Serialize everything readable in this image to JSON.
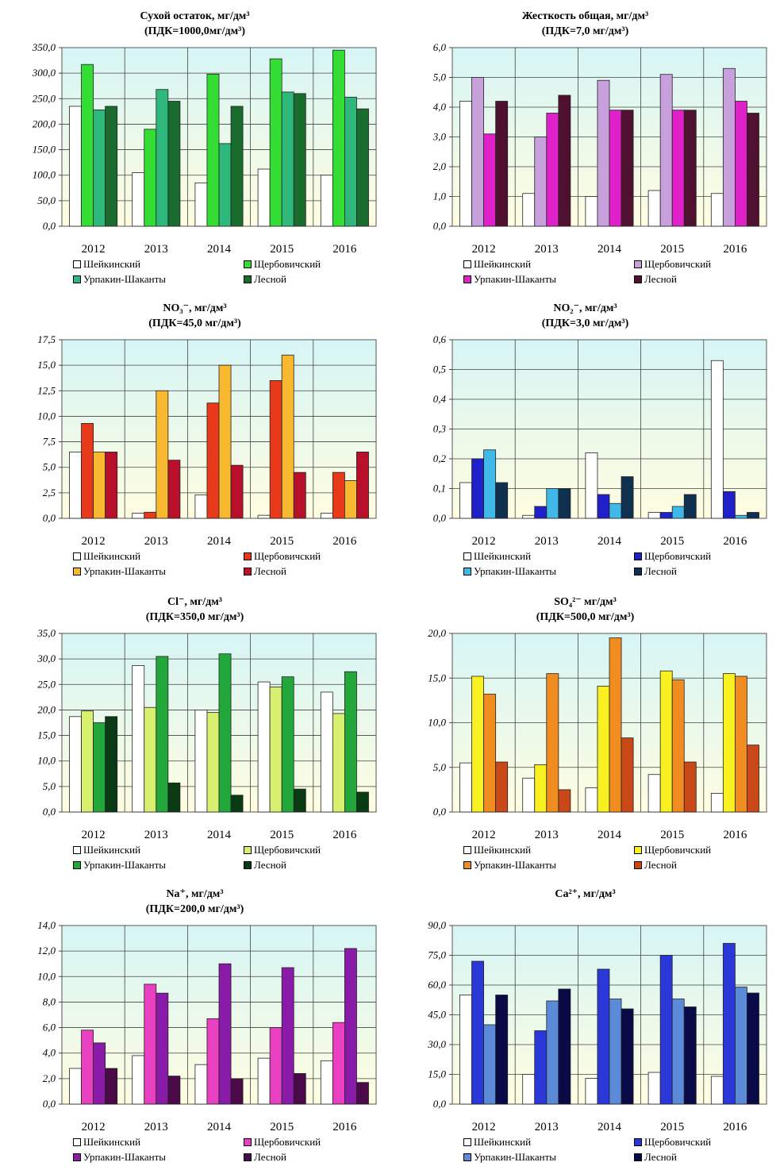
{
  "chart_data": [
    {
      "type": "bar",
      "title": "Сухой остаток, мг/дм³",
      "subtitle": "(ПДК=1000,0мг/дм³)",
      "categories": [
        "2012",
        "2013",
        "2014",
        "2015",
        "2016"
      ],
      "ylim": [
        0,
        350
      ],
      "yticks": [
        "0,0",
        "50,0",
        "100,0",
        "150,0",
        "200,0",
        "250,0",
        "300,0",
        "350,0"
      ],
      "background": [
        "#d6f5f5",
        "#fffde0"
      ],
      "legend_position": "bottom",
      "series": [
        {
          "name": "Шейкинский",
          "color": "#ffffff",
          "values": [
            235,
            105,
            85,
            112,
            100
          ]
        },
        {
          "name": "Щербовичский",
          "color": "#33dd33",
          "values": [
            317,
            190,
            298,
            328,
            345
          ]
        },
        {
          "name": "Урпакин-Шаканты",
          "color": "#2eb87c",
          "values": [
            228,
            268,
            162,
            263,
            253
          ]
        },
        {
          "name": "Лесной",
          "color": "#1a6b2e",
          "values": [
            235,
            245,
            235,
            260,
            230
          ]
        }
      ]
    },
    {
      "type": "bar",
      "title": "Жесткость общая, мг/дм³",
      "subtitle": "(ПДК=7,0 мг/дм³)",
      "categories": [
        "2012",
        "2013",
        "2014",
        "2015",
        "2016"
      ],
      "ylim": [
        0,
        6
      ],
      "yticks": [
        "0,0",
        "1,0",
        "2,0",
        "3,0",
        "4,0",
        "5,0",
        "6,0"
      ],
      "background": [
        "#d6f5f5",
        "#fffde0"
      ],
      "legend_position": "bottom",
      "series": [
        {
          "name": "Шейкинский",
          "color": "#ffffff",
          "values": [
            4.2,
            1.1,
            1.0,
            1.2,
            1.1
          ]
        },
        {
          "name": "Щербовичский",
          "color": "#c8a0dc",
          "values": [
            5.0,
            3.0,
            4.9,
            5.1,
            5.3
          ]
        },
        {
          "name": "Урпакин-Шаканты",
          "color": "#e020c8",
          "values": [
            3.1,
            3.8,
            3.9,
            3.9,
            4.2
          ]
        },
        {
          "name": "Лесной",
          "color": "#501030",
          "values": [
            4.2,
            4.4,
            3.9,
            3.9,
            3.8
          ]
        }
      ]
    },
    {
      "type": "bar",
      "title": "NO₃⁻, мг/дм³",
      "subtitle": "(ПДК=45,0 мг/дм³)",
      "categories": [
        "2012",
        "2013",
        "2014",
        "2015",
        "2016"
      ],
      "ylim": [
        0,
        17.5
      ],
      "yticks": [
        "0,0",
        "2,5",
        "5,0",
        "7,5",
        "10,0",
        "12,5",
        "15,0",
        "17,5"
      ],
      "background": [
        "#d6f5f5",
        "#fffde0"
      ],
      "legend_position": "bottom",
      "series": [
        {
          "name": "Шейкинский",
          "color": "#ffffff",
          "values": [
            6.5,
            0.5,
            2.3,
            0.3,
            0.5
          ]
        },
        {
          "name": "Щербовичский",
          "color": "#e83a1a",
          "values": [
            9.3,
            0.6,
            11.3,
            13.5,
            4.5
          ]
        },
        {
          "name": "Урпакин-Шаканты",
          "color": "#f8b830",
          "values": [
            6.5,
            12.5,
            15.0,
            16.0,
            3.7
          ]
        },
        {
          "name": "Лесной",
          "color": "#b8102a",
          "values": [
            6.5,
            5.7,
            5.2,
            4.5,
            6.5
          ]
        }
      ]
    },
    {
      "type": "bar",
      "title": "NO₂⁻, мг/дм³",
      "subtitle": "(ПДК=3,0 мг/дм³)",
      "categories": [
        "2012",
        "2013",
        "2014",
        "2015",
        "2016"
      ],
      "ylim": [
        0,
        0.6
      ],
      "yticks": [
        "0,0",
        "0,1",
        "0,2",
        "0,3",
        "0,4",
        "0,5",
        "0,6"
      ],
      "background": [
        "#d6f5f5",
        "#fffde0"
      ],
      "legend_position": "bottom",
      "series": [
        {
          "name": "Шейкинский",
          "color": "#ffffff",
          "values": [
            0.12,
            0.01,
            0.22,
            0.02,
            0.53
          ]
        },
        {
          "name": "Щербовичский",
          "color": "#2020c8",
          "values": [
            0.2,
            0.04,
            0.08,
            0.02,
            0.09
          ]
        },
        {
          "name": "Урпакин-Шаканты",
          "color": "#40b8e8",
          "values": [
            0.23,
            0.1,
            0.05,
            0.04,
            0.01
          ]
        },
        {
          "name": "Лесной",
          "color": "#103050",
          "values": [
            0.12,
            0.1,
            0.14,
            0.08,
            0.02
          ]
        }
      ]
    },
    {
      "type": "bar",
      "title": "Cl⁻, мг/дм³",
      "subtitle": "(ПДК=350,0 мг/дм³)",
      "categories": [
        "2012",
        "2013",
        "2014",
        "2015",
        "2016"
      ],
      "ylim": [
        0,
        35
      ],
      "yticks": [
        "0,0",
        "5,0",
        "10,0",
        "15,0",
        "20,0",
        "25,0",
        "30,0",
        "35,0"
      ],
      "background": [
        "#d6f5f5",
        "#fffde0"
      ],
      "legend_position": "bottom",
      "series": [
        {
          "name": "Шейкинский",
          "color": "#ffffff",
          "values": [
            18.7,
            28.7,
            20.0,
            25.5,
            23.5
          ]
        },
        {
          "name": "Щербовичский",
          "color": "#d8f070",
          "values": [
            19.8,
            20.5,
            19.5,
            24.5,
            19.3
          ]
        },
        {
          "name": "Урпакин-Шаканты",
          "color": "#22a83a",
          "values": [
            17.5,
            30.5,
            31.0,
            26.5,
            27.5
          ]
        },
        {
          "name": "Лесной",
          "color": "#0a3a14",
          "values": [
            18.7,
            5.7,
            3.3,
            4.5,
            3.9
          ]
        }
      ]
    },
    {
      "type": "bar",
      "title": "SO₄²⁻ мг/дм³",
      "subtitle": "(ПДК=500,0 мг/дм³)",
      "categories": [
        "2012",
        "2013",
        "2014",
        "2015",
        "2016"
      ],
      "ylim": [
        0,
        20
      ],
      "yticks": [
        "0,0",
        "5,0",
        "10,0",
        "15,0",
        "20,0"
      ],
      "background": [
        "#d6f5f5",
        "#fffde0"
      ],
      "legend_position": "bottom",
      "series": [
        {
          "name": "Шейкинский",
          "color": "#ffffff",
          "values": [
            5.5,
            3.8,
            2.7,
            4.2,
            2.1
          ]
        },
        {
          "name": "Щербовичский",
          "color": "#f8f020",
          "values": [
            15.2,
            5.3,
            14.1,
            15.8,
            15.5
          ]
        },
        {
          "name": "Урпакин-Шаканты",
          "color": "#f08c20",
          "values": [
            13.2,
            15.5,
            19.5,
            14.8,
            15.2
          ]
        },
        {
          "name": "Лесной",
          "color": "#c84818",
          "values": [
            5.6,
            2.5,
            8.3,
            5.6,
            7.5
          ]
        }
      ]
    },
    {
      "type": "bar",
      "title": "Na⁺, мг/дм³",
      "subtitle": "(ПДК=200,0 мг/дм³)",
      "categories": [
        "2012",
        "2013",
        "2014",
        "2015",
        "2016"
      ],
      "ylim": [
        0,
        14
      ],
      "yticks": [
        "0,0",
        "2,0",
        "4,0",
        "6,0",
        "8,0",
        "10,0",
        "12,0",
        "14,0"
      ],
      "background": [
        "#d6f5f5",
        "#fffde0"
      ],
      "legend_position": "bottom",
      "series": [
        {
          "name": "Шейкинский",
          "color": "#ffffff",
          "values": [
            2.8,
            3.8,
            3.1,
            3.6,
            3.4
          ]
        },
        {
          "name": "Щербовичский",
          "color": "#e840c0",
          "values": [
            5.8,
            9.4,
            6.7,
            6.0,
            6.4
          ]
        },
        {
          "name": "Урпакин-Шаканты",
          "color": "#8a1aa8",
          "values": [
            4.8,
            8.7,
            11.0,
            10.7,
            12.2
          ]
        },
        {
          "name": "Лесной",
          "color": "#4a0a48",
          "values": [
            2.8,
            2.2,
            2.0,
            2.4,
            1.7
          ]
        }
      ]
    },
    {
      "type": "bar",
      "title": "Ca²⁺, мг/дм³",
      "subtitle": "",
      "categories": [
        "2012",
        "2013",
        "2014",
        "2015",
        "2016"
      ],
      "ylim": [
        0,
        90
      ],
      "yticks": [
        "0,0",
        "15,0",
        "30,0",
        "45,0",
        "60,0",
        "75,0",
        "90,0"
      ],
      "background": [
        "#d6f5f5",
        "#fffde0"
      ],
      "legend_position": "bottom",
      "series": [
        {
          "name": "Шейкинский",
          "color": "#ffffff",
          "values": [
            55,
            15,
            13,
            16,
            14
          ]
        },
        {
          "name": "Щербовичский",
          "color": "#2a38d8",
          "values": [
            72,
            37,
            68,
            75,
            81
          ]
        },
        {
          "name": "Урпакин-Шаканты",
          "color": "#5a8ad8",
          "values": [
            40,
            52,
            53,
            53,
            59
          ]
        },
        {
          "name": "Лесной",
          "color": "#0a0a48",
          "values": [
            55,
            58,
            48,
            49,
            56
          ]
        }
      ]
    }
  ]
}
